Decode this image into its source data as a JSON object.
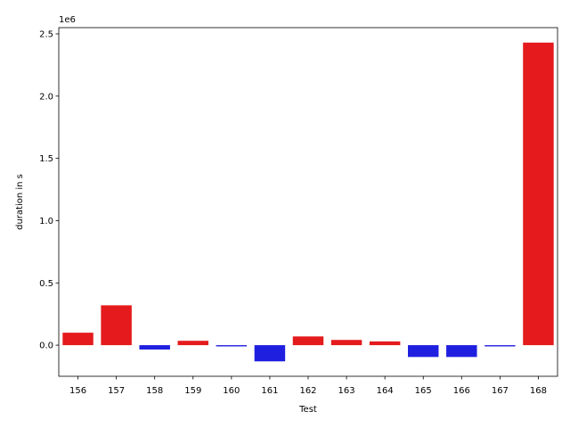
{
  "chart_data": {
    "type": "bar",
    "title": "",
    "xlabel": "Test",
    "ylabel": "duration in s",
    "y_offset_label": "1e6",
    "ylim": [
      -250000,
      2550000
    ],
    "grid": false,
    "categories": [
      "156",
      "157",
      "158",
      "159",
      "160",
      "161",
      "162",
      "163",
      "164",
      "165",
      "166",
      "167",
      "168"
    ],
    "values": [
      100000,
      320000,
      -35000,
      35000,
      -10000,
      -130000,
      70000,
      42000,
      30000,
      -95000,
      -95000,
      -10000,
      2430000
    ],
    "colors": [
      "#e41a1c",
      "#e41a1c",
      "#1f1fe0",
      "#e41a1c",
      "#1f1fe0",
      "#1f1fe0",
      "#e41a1c",
      "#e41a1c",
      "#e41a1c",
      "#1f1fe0",
      "#1f1fe0",
      "#1f1fe0",
      "#e41a1c"
    ],
    "yticks": [
      0.0,
      0.5,
      1.0,
      1.5,
      2.0,
      2.5
    ],
    "ytick_labels": [
      "0.0",
      "0.5",
      "1.0",
      "1.5",
      "2.0",
      "2.5"
    ],
    "ytick_scale": 1000000
  }
}
